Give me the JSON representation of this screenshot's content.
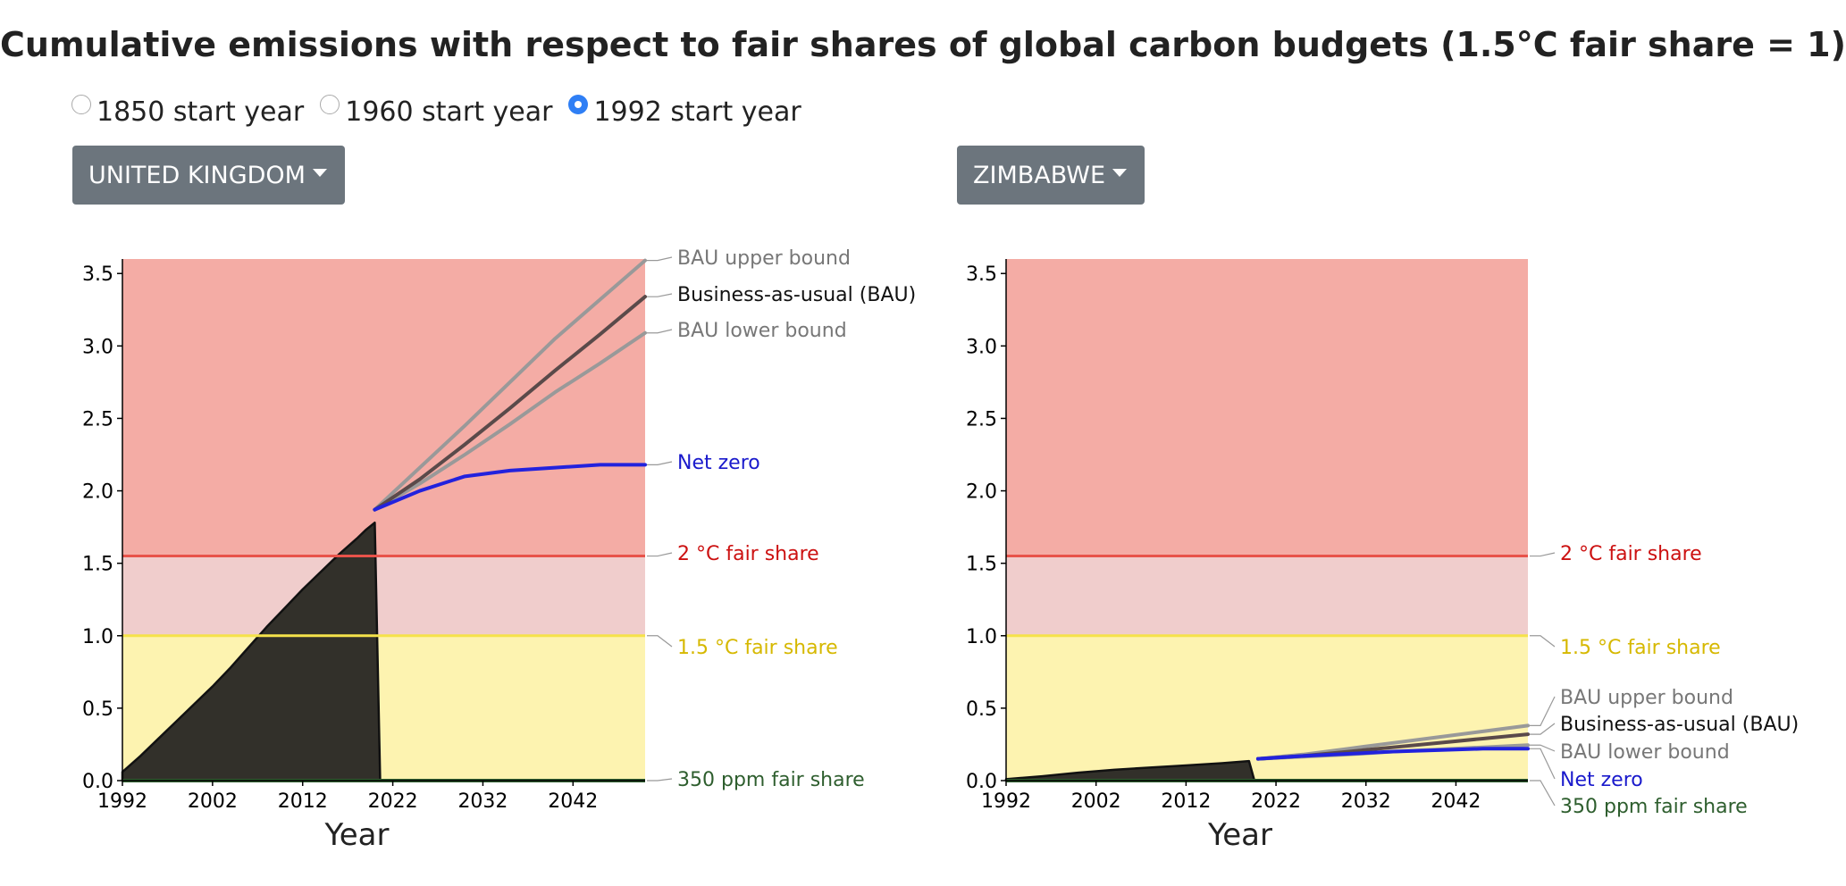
{
  "title": "Cumulative emissions with respect to fair shares of global carbon budgets (1.5°C fair share = 1)",
  "radio_options": [
    {
      "label": "1850 start year",
      "checked": false
    },
    {
      "label": "1960 start year",
      "checked": false
    },
    {
      "label": "1992 start year",
      "checked": true
    }
  ],
  "colors": {
    "red_zone": "#f4aca5",
    "pink_zone": "#f0cdcc",
    "yellow_zone": "#fdf3b0",
    "two_deg_line": "#e8534a",
    "one_five_line": "#f5e24a",
    "ppm_line": "#2e5e2e",
    "historical_fill": "#32302a",
    "bau": "#5a4a4a",
    "bau_bound": "#999999",
    "net_zero": "#2222dd",
    "two_deg_label": "#cc1111",
    "one_five_label": "#d6b800",
    "ppm_label": "#2e5e2e",
    "net_zero_label": "#1a1acc"
  },
  "chart_data": [
    {
      "type": "area",
      "country": "UNITED KINGDOM",
      "xlabel": "Year",
      "xlim": [
        1992,
        2050
      ],
      "ylim": [
        0,
        3.6
      ],
      "x_ticks": [
        1992,
        2002,
        2012,
        2022,
        2032,
        2042
      ],
      "y_ticks": [
        "0.0",
        "0.5",
        "1.0",
        "1.5",
        "2.0",
        "2.5",
        "3.0",
        "3.5"
      ],
      "thresholds": {
        "ppm350": 0,
        "one_five": 1.0,
        "two_deg": 1.55
      },
      "historical": {
        "x": [
          1992,
          1994,
          1996,
          1998,
          2000,
          2002,
          2004,
          2006,
          2008,
          2010,
          2012,
          2014,
          2016,
          2018,
          2019,
          2020
        ],
        "y": [
          0.06,
          0.17,
          0.29,
          0.41,
          0.53,
          0.65,
          0.78,
          0.92,
          1.06,
          1.19,
          1.32,
          1.44,
          1.56,
          1.67,
          1.73,
          1.78
        ]
      },
      "projections_x": [
        2020,
        2025,
        2030,
        2035,
        2040,
        2045,
        2050
      ],
      "bau": [
        1.87,
        2.08,
        2.32,
        2.57,
        2.83,
        3.08,
        3.34
      ],
      "bau_upper": [
        1.87,
        2.16,
        2.45,
        2.75,
        3.05,
        3.32,
        3.59
      ],
      "bau_lower": [
        1.87,
        2.05,
        2.25,
        2.46,
        2.68,
        2.88,
        3.09
      ],
      "net_zero": [
        1.87,
        2.0,
        2.1,
        2.14,
        2.16,
        2.18,
        2.18
      ],
      "labels": {
        "bau_upper": "BAU upper bound",
        "bau": "Business-as-usual (BAU)",
        "bau_lower": "BAU lower bound",
        "net_zero": "Net zero",
        "two_deg": "2 °C fair share",
        "one_five": "1.5 °C fair share",
        "ppm350": "350 ppm fair share"
      }
    },
    {
      "type": "area",
      "country": "ZIMBABWE",
      "xlabel": "Year",
      "xlim": [
        1992,
        2050
      ],
      "ylim": [
        0,
        3.6
      ],
      "x_ticks": [
        1992,
        2002,
        2012,
        2022,
        2032,
        2042
      ],
      "y_ticks": [
        "0.0",
        "0.5",
        "1.0",
        "1.5",
        "2.0",
        "2.5",
        "3.0",
        "3.5"
      ],
      "thresholds": {
        "ppm350": 0,
        "one_five": 1.0,
        "two_deg": 1.55
      },
      "historical": {
        "x": [
          1992,
          1996,
          2000,
          2004,
          2008,
          2012,
          2016,
          2019
        ],
        "y": [
          0.01,
          0.03,
          0.055,
          0.075,
          0.09,
          0.105,
          0.12,
          0.135
        ]
      },
      "projections_x": [
        2020,
        2025,
        2030,
        2035,
        2040,
        2045,
        2050
      ],
      "bau": [
        0.15,
        0.17,
        0.2,
        0.23,
        0.26,
        0.29,
        0.32
      ],
      "bau_upper": [
        0.15,
        0.18,
        0.22,
        0.26,
        0.3,
        0.34,
        0.38
      ],
      "bau_lower": [
        0.15,
        0.165,
        0.18,
        0.2,
        0.215,
        0.23,
        0.245
      ],
      "net_zero": [
        0.15,
        0.17,
        0.185,
        0.2,
        0.21,
        0.22,
        0.22
      ],
      "labels": {
        "bau_upper": "BAU upper bound",
        "bau": "Business-as-usual (BAU)",
        "bau_lower": "BAU lower bound",
        "net_zero": "Net zero",
        "two_deg": "2 °C fair share",
        "one_five": "1.5 °C fair share",
        "ppm350": "350 ppm fair share"
      }
    }
  ]
}
